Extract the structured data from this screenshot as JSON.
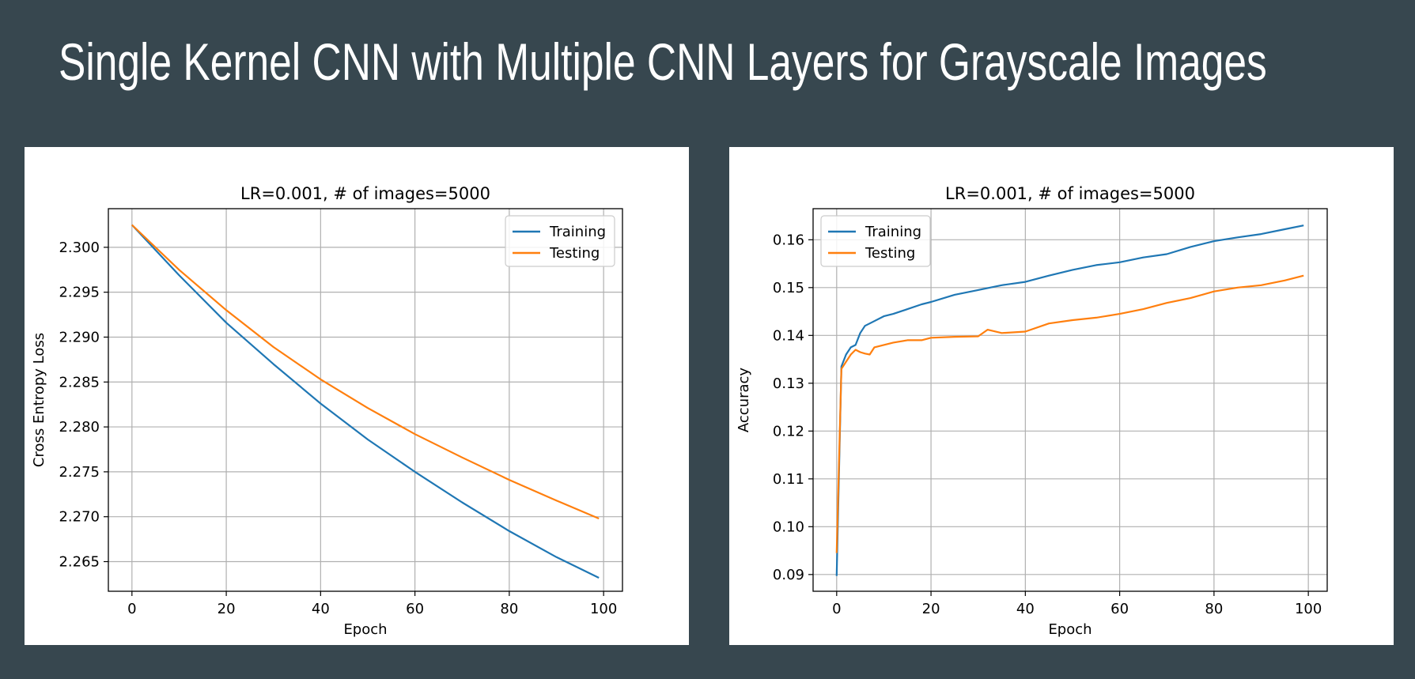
{
  "slide": {
    "title": "Single Kernel CNN with Multiple CNN Layers for Grayscale Images",
    "background_color": "#37474f"
  },
  "chart_data": [
    {
      "type": "line",
      "title": "LR=0.001, # of images=5000",
      "xlabel": "Epoch",
      "ylabel": "Cross Entropy Loss",
      "xlim": [
        -5,
        104
      ],
      "ylim": [
        2.2617,
        2.3043
      ],
      "xticks": [
        0,
        20,
        40,
        60,
        80,
        100
      ],
      "yticks": [
        2.265,
        2.27,
        2.275,
        2.28,
        2.285,
        2.29,
        2.295,
        2.3
      ],
      "ytick_labels": [
        "2.265",
        "2.270",
        "2.275",
        "2.280",
        "2.285",
        "2.290",
        "2.295",
        "2.300"
      ],
      "grid": true,
      "legend_position": "upper right",
      "series": [
        {
          "name": "Training",
          "color": "#1f77b4",
          "x": [
            0,
            10,
            20,
            30,
            40,
            50,
            60,
            70,
            80,
            90,
            99
          ],
          "y": [
            2.3025,
            2.2969,
            2.2916,
            2.287,
            2.2826,
            2.2786,
            2.275,
            2.2716,
            2.2684,
            2.2655,
            2.2632
          ]
        },
        {
          "name": "Testing",
          "color": "#ff7f0e",
          "x": [
            0,
            10,
            20,
            30,
            40,
            50,
            60,
            70,
            80,
            90,
            99
          ],
          "y": [
            2.3025,
            2.2975,
            2.293,
            2.2889,
            2.2853,
            2.2821,
            2.2792,
            2.2766,
            2.2741,
            2.2718,
            2.2698
          ]
        }
      ]
    },
    {
      "type": "line",
      "title": "LR=0.001, # of images=5000",
      "xlabel": "Epoch",
      "ylabel": "Accuracy",
      "xlim": [
        -5,
        104
      ],
      "ylim": [
        0.0865,
        0.1665
      ],
      "xticks": [
        0,
        20,
        40,
        60,
        80,
        100
      ],
      "yticks": [
        0.09,
        0.1,
        0.11,
        0.12,
        0.13,
        0.14,
        0.15,
        0.16
      ],
      "ytick_labels": [
        "0.09",
        "0.10",
        "0.11",
        "0.12",
        "0.13",
        "0.14",
        "0.15",
        "0.16"
      ],
      "grid": true,
      "legend_position": "upper left",
      "series": [
        {
          "name": "Training",
          "color": "#1f77b4",
          "x": [
            0,
            1,
            2,
            3,
            4,
            5,
            6,
            7,
            8,
            10,
            12,
            15,
            18,
            20,
            25,
            30,
            35,
            40,
            45,
            50,
            55,
            60,
            65,
            70,
            75,
            80,
            85,
            90,
            95,
            99
          ],
          "y": [
            0.0897,
            0.1335,
            0.136,
            0.1375,
            0.138,
            0.1405,
            0.142,
            0.1425,
            0.143,
            0.144,
            0.1445,
            0.1455,
            0.1465,
            0.147,
            0.1485,
            0.1495,
            0.1505,
            0.1512,
            0.1525,
            0.1537,
            0.1547,
            0.1553,
            0.1563,
            0.157,
            0.1585,
            0.1597,
            0.1605,
            0.1612,
            0.1622,
            0.163
          ]
        },
        {
          "name": "Testing",
          "color": "#ff7f0e",
          "x": [
            0,
            1,
            2,
            3,
            4,
            5,
            6,
            7,
            8,
            10,
            12,
            15,
            18,
            20,
            25,
            30,
            32,
            35,
            40,
            45,
            50,
            55,
            60,
            65,
            70,
            75,
            80,
            85,
            90,
            95,
            99
          ],
          "y": [
            0.0945,
            0.133,
            0.1345,
            0.136,
            0.137,
            0.1365,
            0.1362,
            0.136,
            0.1375,
            0.138,
            0.1385,
            0.139,
            0.139,
            0.1395,
            0.1397,
            0.1398,
            0.1412,
            0.1405,
            0.1408,
            0.1425,
            0.1432,
            0.1437,
            0.1445,
            0.1455,
            0.1468,
            0.1478,
            0.1492,
            0.15,
            0.1505,
            0.1515,
            0.1525
          ]
        }
      ]
    }
  ]
}
